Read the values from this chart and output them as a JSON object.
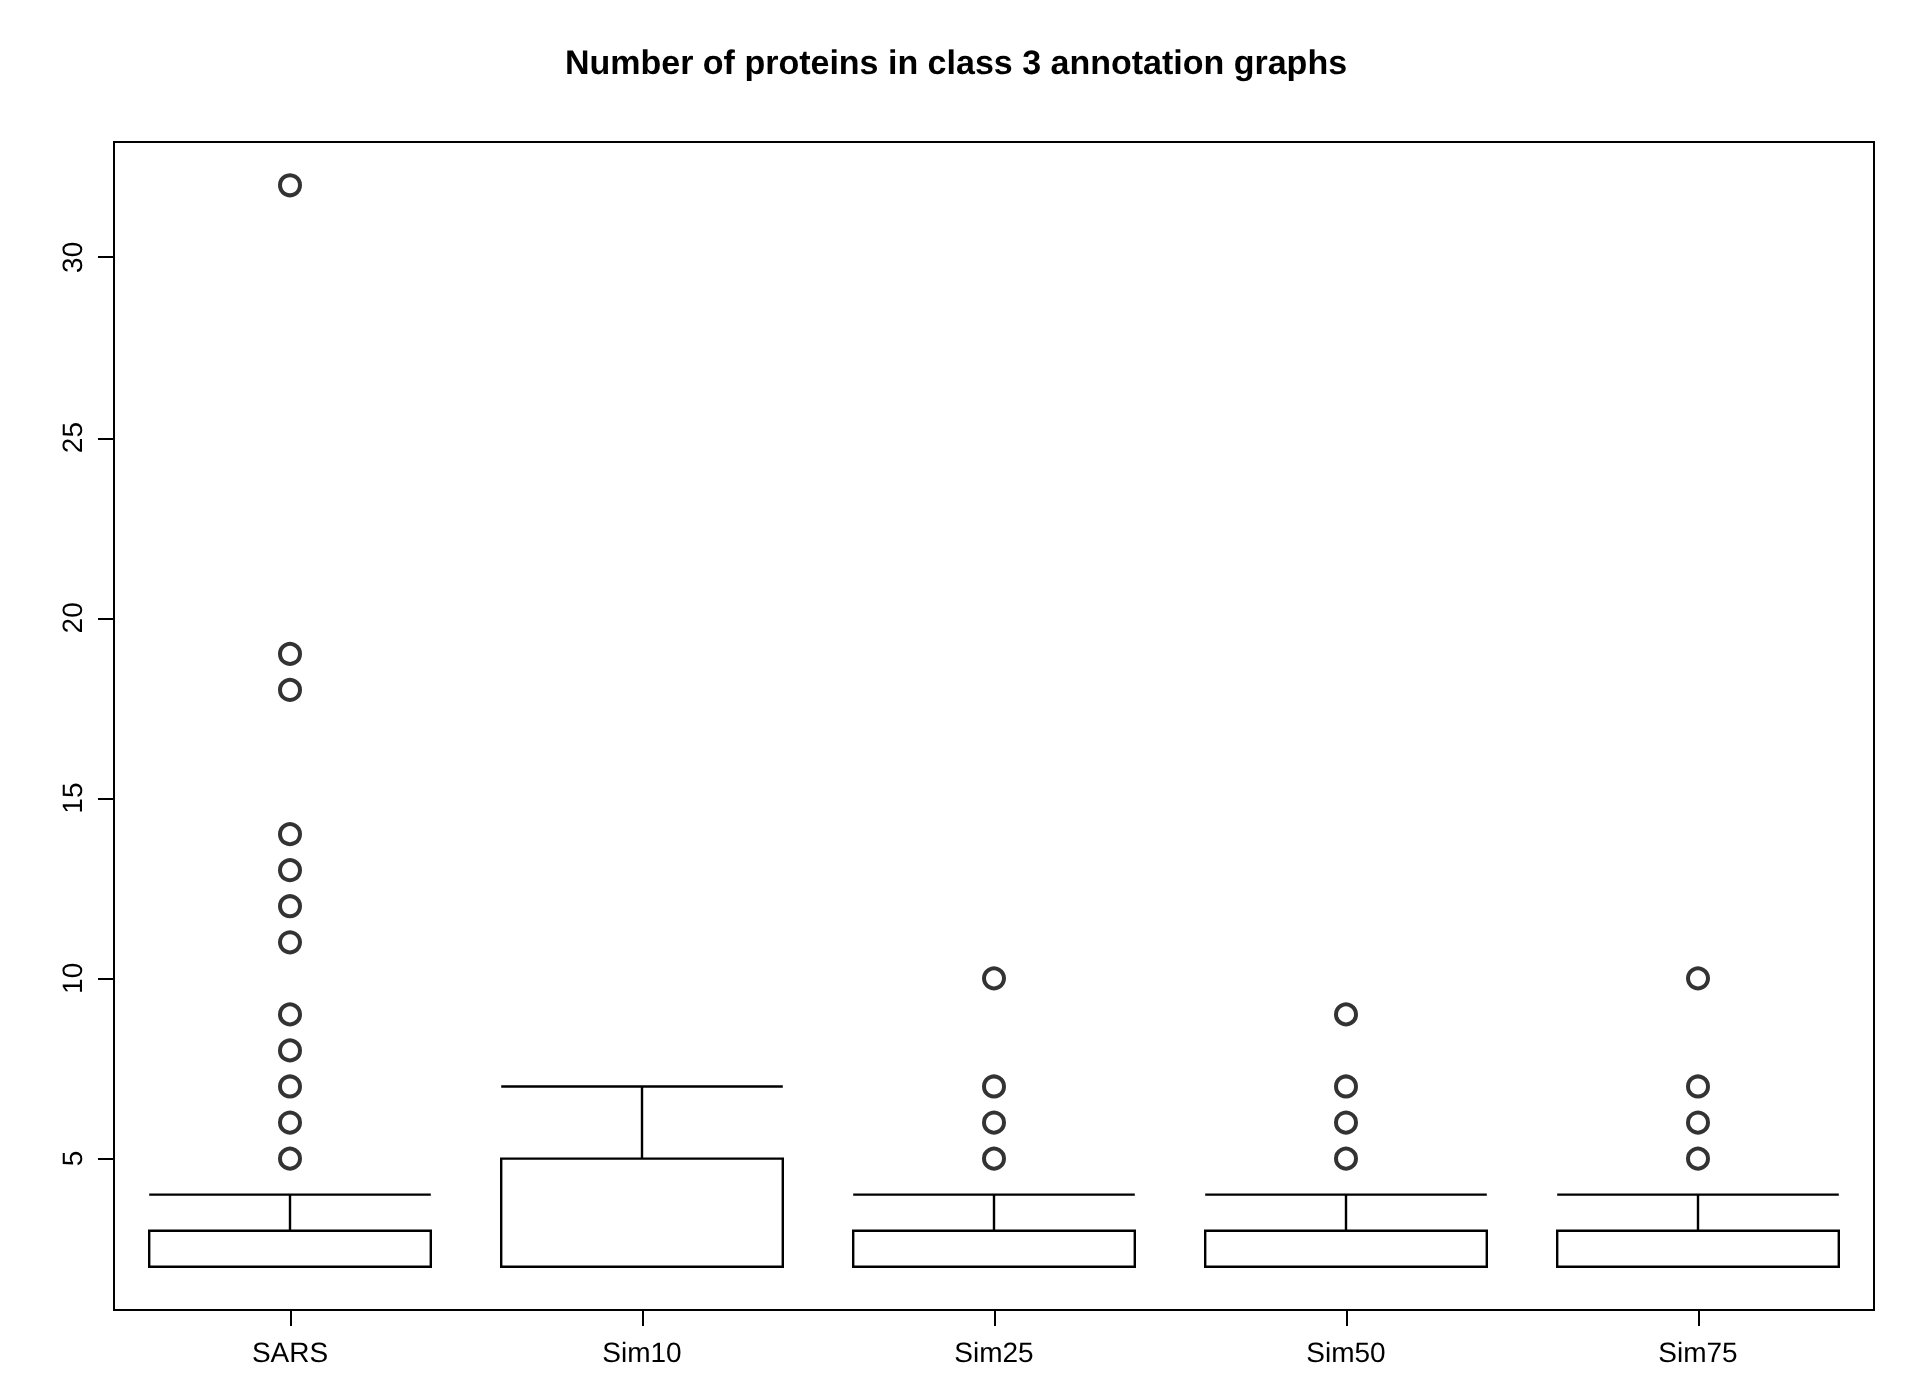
{
  "chart_data": {
    "type": "box",
    "title": "Number of proteins in class 3 annotation graphs",
    "categories": [
      "SARS",
      "Sim10",
      "Sim25",
      "Sim50",
      "Sim75"
    ],
    "boxes": [
      {
        "low": 2,
        "q1": 2,
        "median": 2,
        "q3": 3,
        "high": 4,
        "outliers": [
          5,
          6,
          7,
          8,
          9,
          11,
          12,
          13,
          14,
          18,
          19,
          32
        ]
      },
      {
        "low": 2,
        "q1": 2,
        "median": 2,
        "q3": 5,
        "high": 7
      },
      {
        "low": 2,
        "q1": 2,
        "median": 2,
        "q3": 3,
        "high": 4,
        "outliers": [
          5,
          6,
          7,
          10
        ]
      },
      {
        "low": 2,
        "q1": 2,
        "median": 2,
        "q3": 3,
        "high": 4,
        "outliers": [
          5,
          6,
          7,
          9
        ]
      },
      {
        "low": 2,
        "q1": 2,
        "median": 2,
        "q3": 3,
        "high": 4,
        "outliers": [
          5,
          6,
          7,
          10
        ]
      }
    ],
    "color": "#000000",
    "ylim": [
      0.8,
      33.2
    ],
    "yticks": [
      5,
      10,
      15,
      20,
      25,
      30
    ],
    "grid": false
  }
}
